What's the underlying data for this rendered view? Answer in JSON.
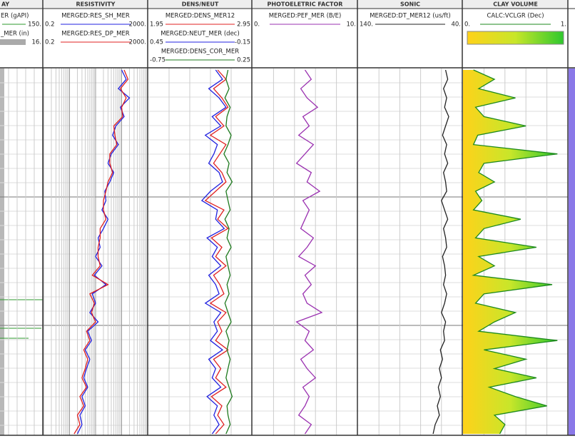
{
  "tracks": [
    {
      "title": "AY",
      "curves": [
        {
          "name": "ER (gAPI)",
          "color": "#2e9a2e",
          "right": {
            "value": 150,
            "label": "150."
          }
        },
        {
          "name": "_MER (in)",
          "color": "#aaaaaa",
          "right": {
            "value": 16,
            "label": "16."
          }
        }
      ]
    },
    {
      "title": "RESISTIVITY",
      "log": true,
      "curves": [
        {
          "name": "MERGED:RES_SH_MER",
          "color": "#2020e0",
          "left": 0.2,
          "right": {
            "value": 2000,
            "label": "2000."
          },
          "values": [
            200,
            300,
            150,
            400,
            180,
            250,
            120,
            90,
            150,
            80,
            60,
            100,
            70,
            45,
            50,
            35,
            60,
            40,
            25,
            30,
            20,
            35,
            18,
            50,
            15,
            20,
            12,
            25,
            10,
            14,
            8,
            12,
            9,
            7,
            10,
            6,
            8,
            5,
            6,
            4
          ]
        },
        {
          "name": "MERGED:RES_DP_MER",
          "color": "#e02020",
          "left": 0.2,
          "right": {
            "value": 2000,
            "label": "2000."
          },
          "values": [
            250,
            350,
            180,
            300,
            200,
            220,
            100,
            110,
            130,
            70,
            70,
            90,
            60,
            50,
            40,
            40,
            50,
            30,
            30,
            25,
            25,
            30,
            15,
            60,
            12,
            18,
            14,
            20,
            9,
            12,
            7,
            10,
            8,
            6,
            9,
            5,
            7,
            4,
            5,
            3
          ]
        }
      ]
    },
    {
      "title": "DENS/NEUT",
      "curves": [
        {
          "name": "MERGED:DENS_MER12",
          "color": "#e02020",
          "left": 1.95,
          "right": 2.95,
          "values": [
            2.62,
            2.7,
            2.58,
            2.66,
            2.72,
            2.6,
            2.68,
            2.55,
            2.7,
            2.64,
            2.58,
            2.66,
            2.7,
            2.6,
            2.5,
            2.68,
            2.62,
            2.72,
            2.56,
            2.66,
            2.6,
            2.7,
            2.58,
            2.64,
            2.68,
            2.55,
            2.7,
            2.62,
            2.66,
            2.6,
            2.72,
            2.58,
            2.65,
            2.6,
            2.7,
            2.56,
            2.66,
            2.62,
            2.68,
            2.6
          ]
        },
        {
          "name": "MERGED:NEUT_MER (dec)",
          "color": "#2020e0",
          "left": 0.45,
          "right": -0.15,
          "values": [
            0.06,
            0.02,
            0.1,
            0.04,
            0.0,
            0.08,
            0.03,
            0.12,
            0.05,
            0.07,
            0.1,
            0.04,
            0.02,
            0.09,
            0.14,
            0.05,
            0.06,
            0.01,
            0.11,
            0.05,
            0.08,
            0.03,
            0.1,
            0.06,
            0.04,
            0.12,
            0.03,
            0.07,
            0.05,
            0.09,
            0.02,
            0.1,
            0.06,
            0.08,
            0.03,
            0.11,
            0.05,
            0.07,
            0.04,
            0.08
          ]
        },
        {
          "name": "MERGED:DENS_COR_MER",
          "color": "#1e7a1e",
          "left": -0.75,
          "right": 0.25,
          "values": [
            0.02,
            0.0,
            0.03,
            -0.01,
            0.04,
            0.01,
            0.0,
            0.05,
            0.02,
            -0.02,
            0.03,
            0.01,
            0.06,
            0.0,
            0.02,
            0.04,
            -0.01,
            0.03,
            0.01,
            0.05,
            0.0,
            0.02,
            0.04,
            0.01,
            0.03,
            -0.01,
            0.02,
            0.05,
            0.0,
            0.03,
            0.01,
            0.04,
            0.02,
            0.0,
            0.03,
            0.06,
            0.01,
            0.02,
            0.04,
            0.0
          ]
        }
      ]
    },
    {
      "title": "PHOTOELETRIC FACTOR",
      "curves": [
        {
          "name": "MERGED:PEF_MER (B/E)",
          "color": "#9a30b0",
          "left": {
            "value": 0,
            "label": "0."
          },
          "right": {
            "value": 10,
            "label": "10."
          },
          "values": [
            5.0,
            5.6,
            4.6,
            5.2,
            6.2,
            4.8,
            5.4,
            4.4,
            5.8,
            5.0,
            4.2,
            5.6,
            5.2,
            6.4,
            4.8,
            5.4,
            5.0,
            4.6,
            5.8,
            5.2,
            4.4,
            6.0,
            5.0,
            5.6,
            4.8,
            5.2,
            6.6,
            4.2,
            5.4,
            5.0,
            5.8,
            4.6,
            5.2,
            6.0,
            4.8,
            5.4,
            5.0,
            4.4,
            5.6,
            5.0
          ]
        }
      ]
    },
    {
      "title": "SONIC",
      "curves": [
        {
          "name": "MERGED:DT_MER12 (us/ft)",
          "color": "#222222",
          "left": {
            "value": 140,
            "label": "140."
          },
          "right": {
            "value": 40,
            "label": "40."
          },
          "values": [
            56,
            54,
            58,
            55,
            57,
            53,
            56,
            59,
            55,
            57,
            54,
            58,
            56,
            55,
            60,
            57,
            54,
            58,
            56,
            55,
            59,
            57,
            56,
            58,
            55,
            57,
            60,
            56,
            58,
            57,
            61,
            59,
            62,
            60,
            63,
            61,
            64,
            62,
            66,
            68
          ]
        }
      ]
    },
    {
      "title": "CLAY VOLUME",
      "fill": true,
      "curves": [
        {
          "name": "CALC:VCLGR (Dec)",
          "color": "#1e8a1e",
          "left": {
            "value": 0,
            "label": "0."
          },
          "right": {
            "value": 1,
            "label": "1."
          },
          "values": [
            0.1,
            0.3,
            0.15,
            0.5,
            0.12,
            0.2,
            0.6,
            0.14,
            0.1,
            0.9,
            0.2,
            0.15,
            0.3,
            0.12,
            0.18,
            0.1,
            0.55,
            0.2,
            0.12,
            0.7,
            0.15,
            0.3,
            0.1,
            0.85,
            0.2,
            0.12,
            0.5,
            0.3,
            0.15,
            0.9,
            0.2,
            0.6,
            0.3,
            0.7,
            0.25,
            0.5,
            0.8,
            0.3,
            0.4,
            0.35
          ]
        }
      ]
    }
  ]
}
